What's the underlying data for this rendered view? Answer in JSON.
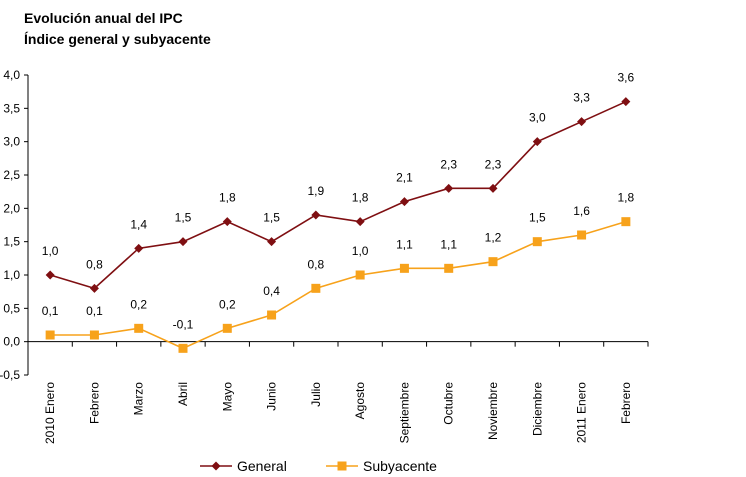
{
  "chart_data": {
    "type": "line",
    "title": "Evolución anual del IPC",
    "subtitle": "Índice general y subyacente",
    "categories": [
      "2010 Enero",
      "Febrero",
      "Marzo",
      "Abril",
      "Mayo",
      "Junio",
      "Julio",
      "Agosto",
      "Septiembre",
      "Octubre",
      "Noviembre",
      "Diciembre",
      "2011 Enero",
      "Febrero"
    ],
    "series": [
      {
        "name": "General",
        "color": "#7f0f12",
        "marker": "diamond",
        "values": [
          1.0,
          0.8,
          1.4,
          1.5,
          1.8,
          1.5,
          1.9,
          1.8,
          2.1,
          2.3,
          2.3,
          3.0,
          3.3,
          3.6
        ],
        "labels": [
          "1,0",
          "0,8",
          "1,4",
          "1,5",
          "1,8",
          "1,5",
          "1,9",
          "1,8",
          "2,1",
          "2,3",
          "2,3",
          "3,0",
          "3,3",
          "3,6"
        ]
      },
      {
        "name": "Subyacente",
        "color": "#f7a21b",
        "marker": "square",
        "values": [
          0.1,
          0.1,
          0.2,
          -0.1,
          0.2,
          0.4,
          0.8,
          1.0,
          1.1,
          1.1,
          1.2,
          1.5,
          1.6,
          1.8
        ],
        "labels": [
          "0,1",
          "0,1",
          "0,2",
          "-0,1",
          "0,2",
          "0,4",
          "0,8",
          "1,0",
          "1,1",
          "1,1",
          "1,2",
          "1,5",
          "1,6",
          "1,8"
        ]
      }
    ],
    "ylim": [
      -0.5,
      4.0
    ],
    "yticks": [
      -0.5,
      0.0,
      0.5,
      1.0,
      1.5,
      2.0,
      2.5,
      3.0,
      3.5,
      4.0
    ],
    "ytick_labels": [
      "-0,5",
      "0,0",
      "0,5",
      "1,0",
      "1,5",
      "2,0",
      "2,5",
      "3,0",
      "3,5",
      "4,0"
    ],
    "grid": false,
    "legend": "bottom"
  }
}
